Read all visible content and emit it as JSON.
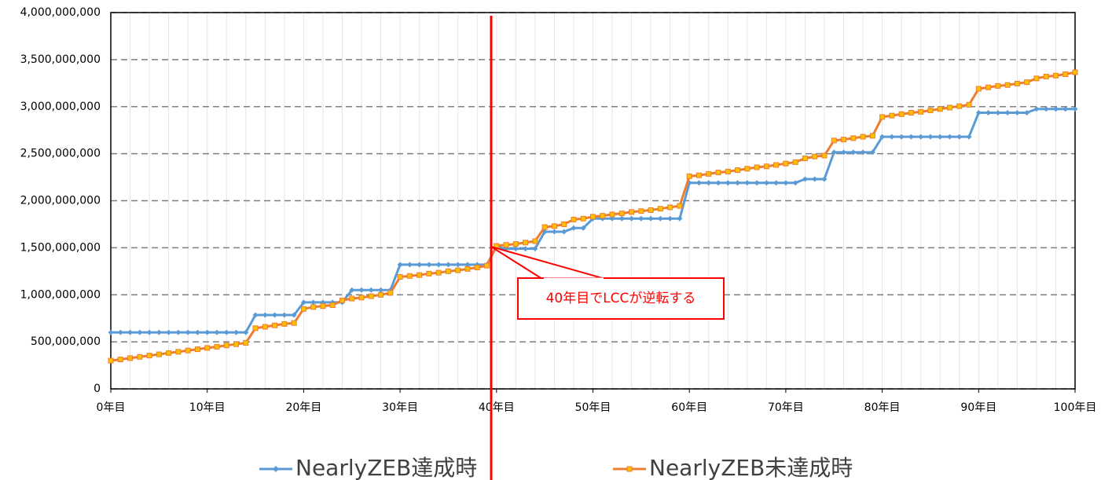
{
  "chart_data": {
    "type": "line",
    "categories": [
      "0年目",
      null,
      null,
      null,
      null,
      null,
      null,
      null,
      null,
      null,
      "10年目",
      null,
      null,
      null,
      null,
      null,
      null,
      null,
      null,
      null,
      "20年目",
      null,
      null,
      null,
      null,
      null,
      null,
      null,
      null,
      null,
      "30年目",
      null,
      null,
      null,
      null,
      null,
      null,
      null,
      null,
      null,
      "40年目",
      null,
      null,
      null,
      null,
      null,
      null,
      null,
      null,
      null,
      "50年目",
      null,
      null,
      null,
      null,
      null,
      null,
      null,
      null,
      null,
      "60年目",
      null,
      null,
      null,
      null,
      null,
      null,
      null,
      null,
      null,
      "70年目",
      null,
      null,
      null,
      null,
      null,
      null,
      null,
      null,
      null,
      "80年目",
      null,
      null,
      null,
      null,
      null,
      null,
      null,
      null,
      null,
      "90年目",
      null,
      null,
      null,
      null,
      null,
      null,
      null,
      null,
      null,
      "100年目"
    ],
    "series": [
      {
        "name": "NearlyZEB達成時",
        "color": "#5b9bd5",
        "marker": "diamond",
        "values": [
          600000000,
          600000000,
          600000000,
          600000000,
          600000000,
          600000000,
          600000000,
          600000000,
          600000000,
          600000000,
          600000000,
          600000000,
          600000000,
          600000000,
          600000000,
          785000000,
          785000000,
          785000000,
          785000000,
          785000000,
          920000000,
          920000000,
          920000000,
          920000000,
          920000000,
          1050000000,
          1050000000,
          1050000000,
          1050000000,
          1050000000,
          1320000000,
          1320000000,
          1320000000,
          1320000000,
          1320000000,
          1320000000,
          1320000000,
          1320000000,
          1320000000,
          1320000000,
          1510000000,
          1490000000,
          1490000000,
          1490000000,
          1490000000,
          1670000000,
          1670000000,
          1670000000,
          1710000000,
          1710000000,
          1810000000,
          1810000000,
          1810000000,
          1810000000,
          1810000000,
          1810000000,
          1810000000,
          1810000000,
          1810000000,
          1810000000,
          2190000000,
          2190000000,
          2190000000,
          2190000000,
          2190000000,
          2190000000,
          2190000000,
          2190000000,
          2190000000,
          2190000000,
          2190000000,
          2190000000,
          2230000000,
          2230000000,
          2230000000,
          2515000000,
          2515000000,
          2515000000,
          2515000000,
          2515000000,
          2680000000,
          2680000000,
          2680000000,
          2680000000,
          2680000000,
          2680000000,
          2680000000,
          2680000000,
          2680000000,
          2680000000,
          2935000000,
          2935000000,
          2935000000,
          2935000000,
          2935000000,
          2935000000,
          2975000000,
          2975000000,
          2975000000,
          2975000000,
          2975000000
        ]
      },
      {
        "name": "NearlyZEB未達成時",
        "color": "#ed7d31",
        "marker": "square",
        "marker_fill": "#ffc000",
        "values": [
          300000000,
          313000000,
          327000000,
          340000000,
          354000000,
          367000000,
          381000000,
          394000000,
          408000000,
          421000000,
          435000000,
          448000000,
          462000000,
          475000000,
          489000000,
          645000000,
          660000000,
          675000000,
          690000000,
          700000000,
          850000000,
          870000000,
          880000000,
          890000000,
          940000000,
          960000000,
          970000000,
          985000000,
          1000000000,
          1020000000,
          1190000000,
          1200000000,
          1210000000,
          1225000000,
          1235000000,
          1250000000,
          1260000000,
          1275000000,
          1290000000,
          1310000000,
          1520000000,
          1530000000,
          1540000000,
          1555000000,
          1570000000,
          1720000000,
          1730000000,
          1750000000,
          1800000000,
          1810000000,
          1830000000,
          1840000000,
          1855000000,
          1865000000,
          1880000000,
          1890000000,
          1900000000,
          1915000000,
          1930000000,
          1945000000,
          2260000000,
          2270000000,
          2285000000,
          2300000000,
          2310000000,
          2325000000,
          2340000000,
          2355000000,
          2365000000,
          2380000000,
          2395000000,
          2410000000,
          2450000000,
          2470000000,
          2480000000,
          2640000000,
          2650000000,
          2665000000,
          2680000000,
          2690000000,
          2890000000,
          2905000000,
          2920000000,
          2935000000,
          2945000000,
          2960000000,
          2975000000,
          2990000000,
          3005000000,
          3020000000,
          3190000000,
          3205000000,
          3220000000,
          3230000000,
          3245000000,
          3260000000,
          3300000000,
          3320000000,
          3330000000,
          3345000000,
          3365000000
        ]
      }
    ],
    "ylim": [
      0,
      4000000000
    ],
    "yticks": [
      0,
      {
        "value": 500000000,
        "label": "500,000,000"
      },
      {
        "value": 1000000000,
        "label": "1,000,000,000"
      },
      {
        "value": 1500000000,
        "label": "1,500,000,000"
      },
      {
        "value": 2000000000,
        "label": "2,000,000,000"
      },
      {
        "value": 2500000000,
        "label": "2,500,000,000"
      },
      {
        "value": 3000000000,
        "label": "3,000,000,000"
      },
      {
        "value": 3500000000,
        "label": "3,500,000,000"
      },
      {
        "value": 4000000000,
        "label": "4,000,000,000"
      }
    ],
    "grid": true,
    "legend": "bottom",
    "annotation": "40年目でLCCが逆転する"
  }
}
